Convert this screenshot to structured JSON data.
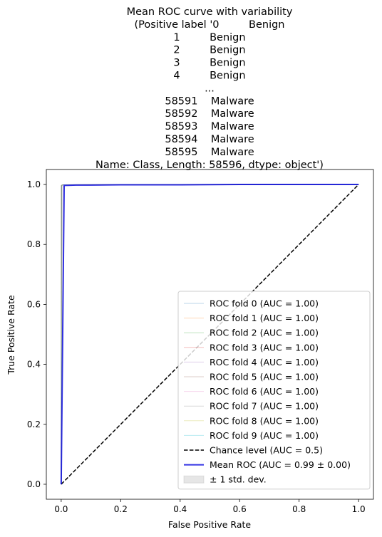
{
  "chart_data": {
    "type": "line",
    "title_lines": [
      "Mean ROC curve with variability",
      "(Positive label '0         Benign",
      "1         Benign",
      "2         Benign",
      "3         Benign",
      "4         Benign",
      "...",
      "58591    Malware",
      "58592    Malware",
      "58593    Malware",
      "58594    Malware",
      "58595    Malware",
      "Name: Class, Length: 58596, dtype: object')"
    ],
    "xlabel": "False Positive Rate",
    "ylabel": "True Positive Rate",
    "xlim": [
      -0.05,
      1.05
    ],
    "ylim": [
      -0.05,
      1.05
    ],
    "xticks": [
      "0.0",
      "0.2",
      "0.4",
      "0.6",
      "0.8",
      "1.0"
    ],
    "yticks": [
      "0.0",
      "0.2",
      "0.4",
      "0.6",
      "0.8",
      "1.0"
    ],
    "legend_position": "lower-right",
    "series": [
      {
        "name": "ROC fold 0 (AUC = 1.00)",
        "color": "#1f77b4",
        "style": "thin",
        "x": [
          0,
          0.001,
          0.006,
          1.0
        ],
        "y": [
          0,
          0.997,
          0.999,
          1.0
        ]
      },
      {
        "name": "ROC fold 1 (AUC = 1.00)",
        "color": "#ff7f0e",
        "style": "thin",
        "x": [
          0,
          0.001,
          0.005,
          1.0
        ],
        "y": [
          0,
          0.996,
          0.999,
          1.0
        ]
      },
      {
        "name": "ROC fold 2 (AUC = 1.00)",
        "color": "#2ca02c",
        "style": "thin",
        "x": [
          0,
          0.001,
          0.006,
          1.0
        ],
        "y": [
          0,
          0.997,
          0.999,
          1.0
        ]
      },
      {
        "name": "ROC fold 3 (AUC = 1.00)",
        "color": "#d62728",
        "style": "thin",
        "x": [
          0,
          0.001,
          0.005,
          1.0
        ],
        "y": [
          0,
          0.996,
          0.999,
          1.0
        ]
      },
      {
        "name": "ROC fold 4 (AUC = 1.00)",
        "color": "#9467bd",
        "style": "thin",
        "x": [
          0,
          0.001,
          0.006,
          1.0
        ],
        "y": [
          0,
          0.997,
          0.999,
          1.0
        ]
      },
      {
        "name": "ROC fold 5 (AUC = 1.00)",
        "color": "#8c564b",
        "style": "thin",
        "x": [
          0,
          0.001,
          0.005,
          1.0
        ],
        "y": [
          0,
          0.996,
          0.999,
          1.0
        ]
      },
      {
        "name": "ROC fold 6 (AUC = 1.00)",
        "color": "#e377c2",
        "style": "thin",
        "x": [
          0,
          0.001,
          0.006,
          1.0
        ],
        "y": [
          0,
          0.997,
          0.999,
          1.0
        ]
      },
      {
        "name": "ROC fold 7 (AUC = 1.00)",
        "color": "#7f7f7f",
        "style": "thin",
        "x": [
          0,
          0.001,
          0.005,
          1.0
        ],
        "y": [
          0,
          0.996,
          0.999,
          1.0
        ]
      },
      {
        "name": "ROC fold 8 (AUC = 1.00)",
        "color": "#bcbd22",
        "style": "thin",
        "x": [
          0,
          0.001,
          0.006,
          1.0
        ],
        "y": [
          0,
          0.997,
          0.999,
          1.0
        ]
      },
      {
        "name": "ROC fold 9 (AUC = 1.00)",
        "color": "#17becf",
        "style": "thin",
        "x": [
          0,
          0.001,
          0.005,
          1.0
        ],
        "y": [
          0,
          0.996,
          0.999,
          1.0
        ]
      },
      {
        "name": "Chance level (AUC = 0.5)",
        "color": "#000000",
        "style": "dashed",
        "x": [
          0,
          1
        ],
        "y": [
          0,
          1
        ]
      },
      {
        "name": "Mean ROC (AUC = 0.99 ± 0.00)",
        "color": "#0000dd",
        "style": "mean",
        "x": [
          0,
          0.01,
          0.02,
          0.05,
          0.1,
          0.2,
          0.4,
          0.6,
          0.8,
          1.0
        ],
        "y": [
          0,
          0.997,
          0.997,
          0.998,
          0.998,
          0.999,
          0.999,
          1.0,
          1.0,
          1.0
        ]
      }
    ],
    "std_band": {
      "name": "± 1 std. dev.",
      "color": "#808080",
      "x": [
        0,
        0.001,
        0.01,
        0.05,
        0.2,
        0.5,
        1.0
      ],
      "upper": [
        0,
        1.0,
        1.0,
        1.0,
        1.0,
        1.0,
        1.0
      ],
      "lower": [
        0,
        0.0,
        0.994,
        0.996,
        0.998,
        0.999,
        1.0
      ]
    }
  }
}
